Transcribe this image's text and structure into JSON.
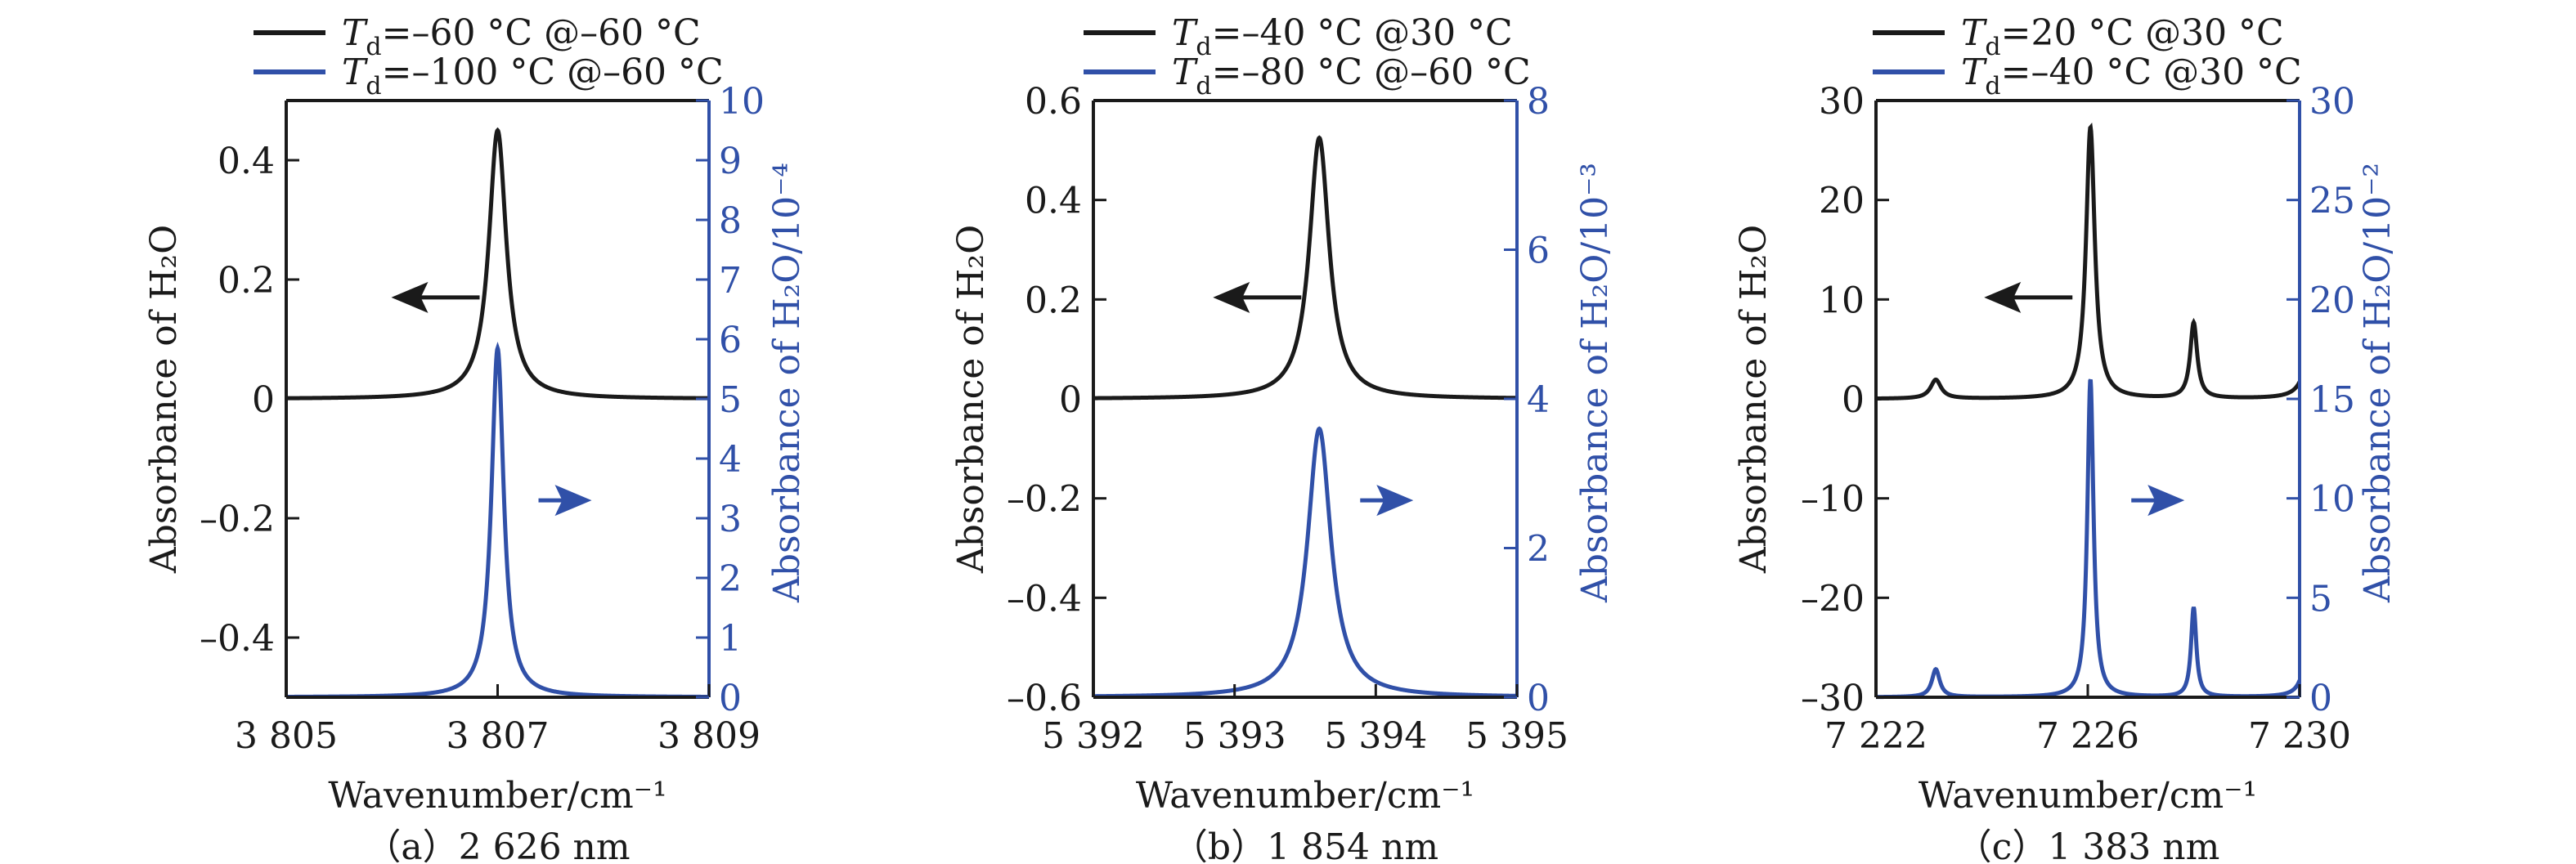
{
  "colors": {
    "primary_series": "#1a1a1a",
    "secondary_series": "#3050a8"
  },
  "chart_data": [
    {
      "type": "line",
      "panel": "a",
      "caption": "（a）2 626 nm",
      "xlabel": "Wavenumber/cm⁻¹",
      "ylabel_left": "Absorbance of H₂O",
      "ylabel_right": "Absorbance of H₂O/10⁻⁴",
      "xlim": [
        3805,
        3809
      ],
      "ylim_left": [
        -0.5,
        0.5
      ],
      "ylim_right": [
        0,
        10
      ],
      "xticks": [
        3805,
        3807,
        3809
      ],
      "xtick_labels": [
        "3 805",
        "3 807",
        "3 809"
      ],
      "yticks_left": [
        -0.4,
        -0.2,
        0,
        0.2,
        0.4
      ],
      "ytick_labels_left": [
        "–0.4",
        "–0.2",
        "0",
        "0.2",
        "0.4"
      ],
      "yticks_right": [
        0,
        1,
        2,
        3,
        4,
        5,
        6,
        7,
        8,
        9,
        10
      ],
      "ytick_labels_right": [
        "0",
        "1",
        "2",
        "3",
        "4",
        "5",
        "6",
        "7",
        "8",
        "9",
        "10"
      ],
      "grid": false,
      "legend_position": "top",
      "series": [
        {
          "name": "Td=–60 °C @–60 °C",
          "legend_main": "=–60 °C @–60 °C",
          "axis": "left",
          "baseline": 0,
          "peaks": [
            {
              "x": 3807.0,
              "height": 0.45,
              "hwhm": 0.1
            }
          ],
          "annotation_arrow": "left"
        },
        {
          "name": "Td=–100 °C @–60 °C",
          "legend_main": "=–100 °C @–60 °C",
          "axis": "right",
          "baseline": 0,
          "peaks": [
            {
              "x": 3807.0,
              "height": 5.85,
              "hwhm": 0.07
            }
          ],
          "annotation_arrow": "right"
        }
      ]
    },
    {
      "type": "line",
      "panel": "b",
      "caption": "（b）1 854 nm",
      "xlabel": "Wavenumber/cm⁻¹",
      "ylabel_left": "Absorbance of H₂O",
      "ylabel_right": "Absorbance of H₂O/10⁻³",
      "xlim": [
        5392,
        5395
      ],
      "ylim_left": [
        -0.6,
        0.6
      ],
      "ylim_right": [
        0,
        8
      ],
      "xticks": [
        5392,
        5393,
        5394,
        5395
      ],
      "xtick_labels": [
        "5 392",
        "5 393",
        "5 394",
        "5 395"
      ],
      "yticks_left": [
        -0.6,
        -0.4,
        -0.2,
        0,
        0.2,
        0.4,
        0.6
      ],
      "ytick_labels_left": [
        "–0.6",
        "–0.4",
        "–0.2",
        "0",
        "0.2",
        "0.4",
        "0.6"
      ],
      "yticks_right": [
        0,
        2,
        4,
        6,
        8
      ],
      "ytick_labels_right": [
        "0",
        "2",
        "4",
        "6",
        "8"
      ],
      "grid": false,
      "legend_position": "top",
      "series": [
        {
          "name": "Td=–40 °C @30 °C",
          "legend_main": "=–40 °C @30 °C",
          "axis": "left",
          "baseline": 0,
          "peaks": [
            {
              "x": 5393.6,
              "height": 0.525,
              "hwhm": 0.085
            }
          ],
          "annotation_arrow": "left"
        },
        {
          "name": "Td=–80 °C @–60 °C",
          "legend_main": "=–80 °C @–60 °C",
          "axis": "right",
          "baseline": 0,
          "peaks": [
            {
              "x": 5393.6,
              "height": 3.6,
              "hwhm": 0.1
            }
          ],
          "annotation_arrow": "right"
        }
      ]
    },
    {
      "type": "line",
      "panel": "c",
      "caption": "（c）1 383 nm",
      "xlabel": "Wavenumber/cm⁻¹",
      "ylabel_left": "Absorbance of H₂O",
      "ylabel_right": "Absorbance of H₂O/10⁻²",
      "xlim": [
        7222,
        7230
      ],
      "ylim_left": [
        -30,
        30
      ],
      "ylim_right": [
        0,
        30
      ],
      "xticks": [
        7222,
        7226,
        7230
      ],
      "xtick_labels": [
        "7 222",
        "7 226",
        "7 230"
      ],
      "yticks_left": [
        -30,
        -20,
        -10,
        0,
        10,
        20,
        30
      ],
      "ytick_labels_left": [
        "–30",
        "–20",
        "–10",
        "0",
        "10",
        "20",
        "30"
      ],
      "yticks_right": [
        0,
        5,
        10,
        15,
        20,
        25,
        30
      ],
      "ytick_labels_right": [
        "0",
        "5",
        "10",
        "15",
        "20",
        "25",
        "30"
      ],
      "grid": false,
      "legend_position": "top",
      "series": [
        {
          "name": "Td=20 °C @30 °C",
          "legend_main": "=20 °C @30 °C",
          "axis": "left",
          "baseline": 0,
          "peaks": [
            {
              "x": 7223.13,
              "height": 1.9,
              "hwhm": 0.12
            },
            {
              "x": 7226.05,
              "height": 27.3,
              "hwhm": 0.1
            },
            {
              "x": 7228.0,
              "height": 7.6,
              "hwhm": 0.08
            },
            {
              "x": 7230.25,
              "height": 9.0,
              "hwhm": 0.12
            }
          ],
          "annotation_arrow": "left"
        },
        {
          "name": "Td=–40 °C @30 °C",
          "legend_main": "=–40 °C @30 °C",
          "axis": "right",
          "baseline": 0,
          "peaks": [
            {
              "x": 7223.13,
              "height": 1.4,
              "hwhm": 0.09
            },
            {
              "x": 7226.05,
              "height": 16.0,
              "hwhm": 0.07
            },
            {
              "x": 7228.0,
              "height": 4.5,
              "hwhm": 0.06
            },
            {
              "x": 7230.2,
              "height": 5.0,
              "hwhm": 0.09
            }
          ],
          "annotation_arrow": "right"
        }
      ]
    }
  ]
}
